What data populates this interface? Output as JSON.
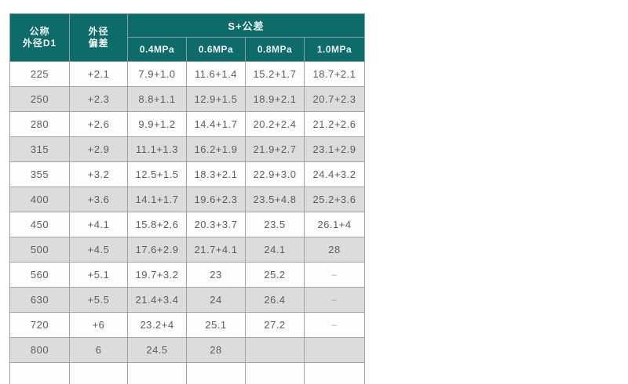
{
  "colors": {
    "header_bg": "#0f6a6a",
    "header_text": "#eef4f4",
    "row_bg": "#fdfdfd",
    "row_alt_bg": "#dcdcda",
    "border": "#a2a2a2",
    "cell_text": "#5d5d5d"
  },
  "table": {
    "header": {
      "col1_line1": "公称",
      "col1_line2": "外径D1",
      "col2_line1": "外径",
      "col2_line2": "偏差",
      "span_label": "S+公差",
      "pressures": [
        "0.4MPa",
        "0.6MPa",
        "0.8MPa",
        "1.0MPa"
      ]
    },
    "rows": [
      [
        "225",
        "+2.1",
        "7.9+1.0",
        "11.6+1.4",
        "15.2+1.7",
        "18.7+2.1"
      ],
      [
        "250",
        "+2.3",
        "8.8+1.1",
        "12.9+1.5",
        "18.9+2.1",
        "20.7+2.3"
      ],
      [
        "280",
        "+2.6",
        "9.9+1.2",
        "14.4+1.7",
        "20.2+2.4",
        "21.2+2.6"
      ],
      [
        "315",
        "+2.9",
        "11.1+1.3",
        "16.2+1.9",
        "21.9+2.7",
        "23.1+2.9"
      ],
      [
        "355",
        "+3.2",
        "12.5+1.5",
        "18.3+2.1",
        "22.9+3.0",
        "24.4+3.2"
      ],
      [
        "400",
        "+3.6",
        "14.1+1.7",
        "19.6+2.3",
        "23.5+4.8",
        "25.2+3.6"
      ],
      [
        "450",
        "+4.1",
        "15.8+2.6",
        "20.3+3.7",
        "23.5",
        "26.1+4"
      ],
      [
        "500",
        "+4.5",
        "17.6+2.9",
        "21.7+4.1",
        "24.1",
        "28"
      ],
      [
        "560",
        "+5.1",
        "19.7+3.2",
        "23",
        "25.2",
        "–"
      ],
      [
        "630",
        "+5.5",
        "21.4+3.4",
        "24",
        "26.4",
        "–"
      ],
      [
        "720",
        "+6",
        "23.2+4",
        "25.1",
        "27.2",
        "–"
      ],
      [
        "800",
        "6",
        "24.5",
        "28",
        "",
        ""
      ],
      [
        "",
        "",
        "",
        "",
        "",
        ""
      ]
    ]
  }
}
